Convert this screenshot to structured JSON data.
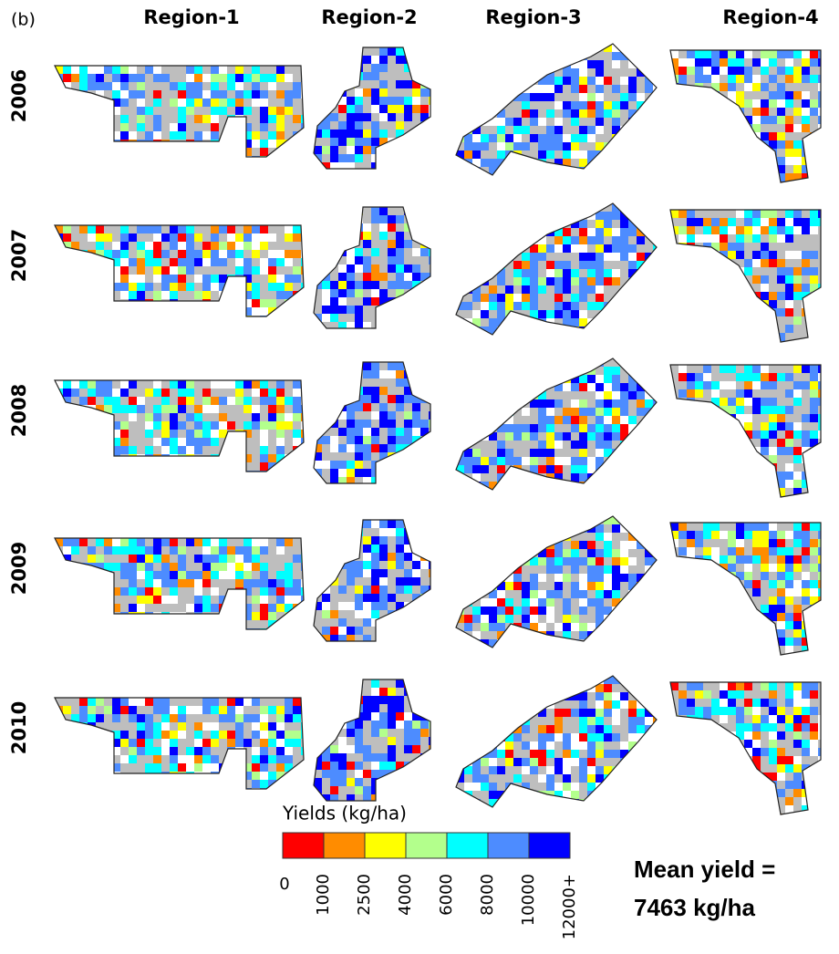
{
  "panel_label": "(b)",
  "columns": [
    "Region-1",
    "Region-2",
    "Region-3",
    "Region-4"
  ],
  "rows": [
    "2006",
    "2007",
    "2008",
    "2009",
    "2010"
  ],
  "legend": {
    "title": "Yields (kg/ha)",
    "colors": [
      "#ff0000",
      "#ff8c00",
      "#ffff00",
      "#b3ff8c",
      "#00ffff",
      "#4d8cff",
      "#0000ff"
    ],
    "ticks": [
      "0",
      "1000",
      "2500",
      "4000",
      "6000",
      "8000",
      "10000",
      "12000+"
    ]
  },
  "note": {
    "lines": [
      "Mean yield =",
      "7463 kg/ha"
    ]
  }
}
